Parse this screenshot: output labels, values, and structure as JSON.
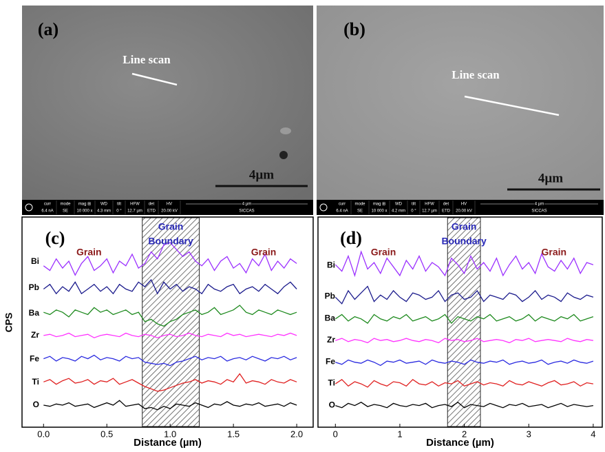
{
  "images": [
    {
      "label": "(a)",
      "annotation": "Line scan",
      "scale_bar": "4µm",
      "info": [
        {
          "k": "curr",
          "v": "6.4 nA"
        },
        {
          "k": "mode",
          "v": "SE"
        },
        {
          "k": "mag ⊞",
          "v": "10 000 x"
        },
        {
          "k": "WD",
          "v": "4.3 mm"
        },
        {
          "k": "tilt",
          "v": "0 °"
        },
        {
          "k": "HFW",
          "v": "12.7 µm"
        },
        {
          "k": "det",
          "v": "ETD"
        },
        {
          "k": "HV",
          "v": "20.00 kV"
        }
      ],
      "bar_scale": "4 µm",
      "lab": "SICCAS"
    },
    {
      "label": "(b)",
      "annotation": "Line scan",
      "scale_bar": "4µm",
      "info": [
        {
          "k": "curr",
          "v": "6.4 nA"
        },
        {
          "k": "mode",
          "v": "SE"
        },
        {
          "k": "mag ⊞",
          "v": "10 000 x"
        },
        {
          "k": "WD",
          "v": "4.2 mm"
        },
        {
          "k": "tilt",
          "v": "0 °"
        },
        {
          "k": "HFW",
          "v": "12.7 µm"
        },
        {
          "k": "det",
          "v": "ETD"
        },
        {
          "k": "HV",
          "v": "20.00 kV"
        }
      ],
      "bar_scale": "4 µm",
      "lab": "SICCAS"
    }
  ],
  "chart_data": [
    {
      "type": "line",
      "panel_label": "(c)",
      "xlabel": "Distance (µm)",
      "ylabel": "CPS",
      "left_label": "Grain",
      "right_label": "Grain",
      "boundary_label": [
        "Grain",
        "Boundary"
      ],
      "boundary": [
        0.78,
        1.23
      ],
      "xlim": [
        -0.17,
        2.13
      ],
      "ylim": [
        0.05,
        9.1
      ],
      "xticks": [
        {
          "value": 0,
          "label": "0.0"
        },
        0.5,
        {
          "value": 1,
          "label": "1.0"
        },
        1.5,
        {
          "value": 2,
          "label": "2.0"
        }
      ],
      "x": [
        0,
        0.05,
        0.1,
        0.15,
        0.2,
        0.25,
        0.3,
        0.35,
        0.4,
        0.45,
        0.5,
        0.55,
        0.6,
        0.65,
        0.7,
        0.75,
        0.8,
        0.85,
        0.9,
        0.95,
        1.0,
        1.05,
        1.1,
        1.15,
        1.2,
        1.25,
        1.3,
        1.35,
        1.4,
        1.45,
        1.5,
        1.55,
        1.6,
        1.65,
        1.7,
        1.75,
        1.8,
        1.85,
        1.9,
        1.95,
        2.0
      ],
      "series": [
        {
          "name": "Bi",
          "color": "#9b30ff",
          "values": [
            7.0,
            6.8,
            7.3,
            6.9,
            7.2,
            6.6,
            7.1,
            7.4,
            6.8,
            7.0,
            7.3,
            6.7,
            7.2,
            7.0,
            7.5,
            6.9,
            7.1,
            7.6,
            7.3,
            7.9,
            8.0,
            7.7,
            7.4,
            7.6,
            7.2,
            7.0,
            7.3,
            6.8,
            7.2,
            7.4,
            6.9,
            7.1,
            6.7,
            7.3,
            7.0,
            7.5,
            6.8,
            7.2,
            6.9,
            7.3,
            7.1
          ]
        },
        {
          "name": "Pb",
          "color": "#1a1a8c",
          "values": [
            6.0,
            6.2,
            5.8,
            6.1,
            5.9,
            6.3,
            5.8,
            6.0,
            6.2,
            5.9,
            6.1,
            5.8,
            6.2,
            6.0,
            5.9,
            6.3,
            6.1,
            6.4,
            5.8,
            6.3,
            6.0,
            6.2,
            5.9,
            6.1,
            6.0,
            5.8,
            6.2,
            6.0,
            5.9,
            6.1,
            6.2,
            5.8,
            6.0,
            6.1,
            5.9,
            6.2,
            6.0,
            5.8,
            6.1,
            6.3,
            6.0
          ]
        },
        {
          "name": "Ba",
          "color": "#1e8a1e",
          "values": [
            5.0,
            4.9,
            5.1,
            5.0,
            4.8,
            5.1,
            5.0,
            4.9,
            5.2,
            5.0,
            5.1,
            4.9,
            5.0,
            5.1,
            4.9,
            5.0,
            4.6,
            4.7,
            4.5,
            4.4,
            4.6,
            4.7,
            4.9,
            5.0,
            5.1,
            4.9,
            5.0,
            5.2,
            4.9,
            5.0,
            5.1,
            5.3,
            5.0,
            4.9,
            5.1,
            5.0,
            4.9,
            5.1,
            5.0,
            4.9,
            5.0
          ]
        },
        {
          "name": "Zr",
          "color": "#ff33ff",
          "values": [
            4.0,
            4.05,
            3.95,
            4.0,
            4.1,
            3.95,
            4.0,
            4.05,
            3.9,
            4.0,
            4.05,
            4.0,
            3.95,
            4.1,
            4.0,
            3.95,
            4.05,
            4.0,
            3.9,
            4.0,
            4.05,
            3.95,
            4.0,
            4.1,
            4.0,
            3.95,
            4.05,
            4.0,
            3.95,
            4.1,
            4.0,
            4.05,
            3.95,
            4.0,
            4.05,
            4.0,
            3.95,
            4.05,
            4.0,
            4.1,
            4.0
          ]
        },
        {
          "name": "Fe",
          "color": "#2a2ae0",
          "values": [
            3.0,
            3.1,
            2.9,
            3.05,
            3.0,
            2.9,
            3.1,
            3.0,
            3.15,
            2.95,
            3.05,
            3.0,
            2.9,
            3.1,
            3.0,
            3.05,
            2.85,
            2.8,
            2.75,
            2.8,
            2.7,
            2.85,
            2.9,
            3.0,
            3.1,
            2.95,
            3.05,
            3.0,
            3.1,
            2.9,
            3.0,
            3.05,
            2.95,
            3.1,
            3.0,
            2.9,
            3.05,
            3.0,
            3.1,
            2.95,
            3.05
          ]
        },
        {
          "name": "Ti",
          "color": "#e02020",
          "values": [
            2.0,
            2.1,
            1.9,
            2.05,
            2.15,
            1.95,
            2.0,
            2.1,
            1.9,
            2.05,
            2.0,
            2.15,
            1.9,
            2.0,
            2.1,
            1.95,
            1.8,
            1.7,
            1.6,
            1.65,
            1.75,
            1.85,
            1.95,
            2.0,
            2.1,
            1.95,
            2.05,
            2.0,
            1.9,
            2.1,
            2.0,
            2.35,
            1.95,
            2.05,
            2.0,
            1.9,
            2.1,
            2.0,
            1.95,
            2.1,
            2.0
          ]
        },
        {
          "name": "O",
          "color": "#000000",
          "values": [
            1.0,
            0.95,
            1.05,
            1.0,
            1.1,
            0.95,
            1.0,
            1.05,
            0.9,
            1.0,
            1.1,
            1.0,
            1.2,
            0.95,
            1.0,
            1.05,
            0.85,
            0.9,
            0.8,
            0.95,
            0.85,
            1.05,
            1.0,
            0.95,
            1.1,
            1.0,
            0.9,
            1.05,
            1.0,
            1.15,
            1.0,
            0.95,
            1.05,
            1.0,
            1.1,
            0.95,
            1.0,
            1.05,
            0.95,
            1.1,
            1.0
          ]
        }
      ]
    },
    {
      "type": "line",
      "panel_label": "(d)",
      "xlabel": "Distance (µm)",
      "left_label": "Grain",
      "right_label": "Grain",
      "boundary_label": [
        "Grain",
        "Boundary"
      ],
      "boundary": [
        1.74,
        2.25
      ],
      "xlim": [
        -0.27,
        4.14
      ],
      "ylim": [
        0,
        9.7
      ],
      "xticks": [
        0,
        1,
        2,
        3,
        4
      ],
      "x": [
        0,
        0.1,
        0.2,
        0.3,
        0.4,
        0.5,
        0.6,
        0.7,
        0.8,
        0.9,
        1.0,
        1.1,
        1.2,
        1.3,
        1.4,
        1.5,
        1.6,
        1.7,
        1.8,
        1.9,
        2.0,
        2.1,
        2.2,
        2.3,
        2.4,
        2.5,
        2.6,
        2.7,
        2.8,
        2.9,
        3.0,
        3.1,
        3.2,
        3.3,
        3.4,
        3.5,
        3.6,
        3.7,
        3.8,
        3.9,
        4.0
      ],
      "series": [
        {
          "name": "Bi",
          "color": "#9b30ff",
          "values": [
            7.5,
            7.2,
            7.9,
            7.0,
            8.1,
            7.3,
            7.6,
            7.1,
            7.8,
            7.4,
            7.0,
            7.7,
            7.3,
            7.9,
            7.2,
            7.6,
            7.4,
            7.0,
            7.8,
            7.5,
            7.1,
            7.9,
            7.3,
            7.6,
            7.2,
            7.8,
            7.0,
            7.5,
            7.9,
            7.3,
            7.6,
            7.1,
            8.0,
            7.4,
            7.2,
            7.7,
            7.3,
            7.8,
            7.1,
            7.6,
            7.5
          ]
        },
        {
          "name": "Pb",
          "color": "#1a1a8c",
          "values": [
            6.0,
            5.7,
            6.3,
            5.9,
            6.2,
            6.5,
            5.8,
            6.1,
            5.9,
            6.3,
            6.0,
            5.8,
            6.2,
            6.1,
            5.9,
            6.0,
            6.3,
            5.8,
            6.1,
            6.2,
            5.9,
            6.0,
            6.3,
            5.8,
            6.1,
            6.0,
            5.9,
            6.2,
            6.1,
            5.8,
            6.0,
            6.3,
            5.9,
            6.1,
            6.0,
            5.8,
            6.2,
            6.0,
            5.9,
            6.1,
            6.0
          ]
        },
        {
          "name": "Ba",
          "color": "#1e8a1e",
          "values": [
            5.0,
            5.2,
            4.9,
            5.1,
            5.0,
            4.8,
            5.2,
            5.0,
            4.9,
            5.1,
            5.0,
            5.2,
            4.9,
            5.0,
            5.1,
            4.9,
            5.0,
            5.2,
            4.8,
            5.1,
            5.0,
            4.9,
            5.1,
            5.0,
            5.2,
            4.9,
            5.0,
            5.1,
            4.9,
            5.0,
            5.2,
            4.9,
            5.1,
            5.0,
            4.9,
            5.1,
            5.0,
            5.2,
            4.9,
            5.0,
            5.1
          ]
        },
        {
          "name": "Zr",
          "color": "#ff33ff",
          "values": [
            4.0,
            4.1,
            3.95,
            4.05,
            4.0,
            3.9,
            4.1,
            4.0,
            4.05,
            3.95,
            4.0,
            4.1,
            4.0,
            3.95,
            4.05,
            4.0,
            3.9,
            4.1,
            4.0,
            4.05,
            3.95,
            4.0,
            4.1,
            3.95,
            4.0,
            4.05,
            4.0,
            3.9,
            4.05,
            4.0,
            4.1,
            3.95,
            4.0,
            4.05,
            4.0,
            3.95,
            4.1,
            4.0,
            3.95,
            4.05,
            4.0
          ]
        },
        {
          "name": "Fe",
          "color": "#2a2ae0",
          "values": [
            3.0,
            2.9,
            3.1,
            3.0,
            2.95,
            3.1,
            3.0,
            2.85,
            3.05,
            3.0,
            3.1,
            2.95,
            3.0,
            3.05,
            2.9,
            3.1,
            3.0,
            2.95,
            3.05,
            3.0,
            2.9,
            3.1,
            3.0,
            2.95,
            3.05,
            3.0,
            3.1,
            2.9,
            3.0,
            3.05,
            2.95,
            3.0,
            3.1,
            2.9,
            3.0,
            3.05,
            2.95,
            3.1,
            3.0,
            2.95,
            3.05
          ]
        },
        {
          "name": "Ti",
          "color": "#e02020",
          "values": [
            2.0,
            2.2,
            1.9,
            2.1,
            2.0,
            1.85,
            2.15,
            2.0,
            1.9,
            2.1,
            2.05,
            1.9,
            2.2,
            2.0,
            1.95,
            2.1,
            1.9,
            2.05,
            2.0,
            2.15,
            1.9,
            2.0,
            2.1,
            1.95,
            2.05,
            2.0,
            1.9,
            2.15,
            2.0,
            1.95,
            2.1,
            2.0,
            1.9,
            2.05,
            2.15,
            1.95,
            2.0,
            2.1,
            1.9,
            2.05,
            2.0
          ]
        },
        {
          "name": "O",
          "color": "#000000",
          "values": [
            1.0,
            0.9,
            1.1,
            1.0,
            1.15,
            0.95,
            1.05,
            1.0,
            0.9,
            1.1,
            1.0,
            0.95,
            1.05,
            1.0,
            1.1,
            0.9,
            1.0,
            1.05,
            0.95,
            1.15,
            0.9,
            1.05,
            1.0,
            0.95,
            1.1,
            1.0,
            0.9,
            1.05,
            1.0,
            1.1,
            0.95,
            1.0,
            1.05,
            0.9,
            1.0,
            1.1,
            0.95,
            1.05,
            1.0,
            0.95,
            1.0
          ]
        }
      ]
    }
  ]
}
